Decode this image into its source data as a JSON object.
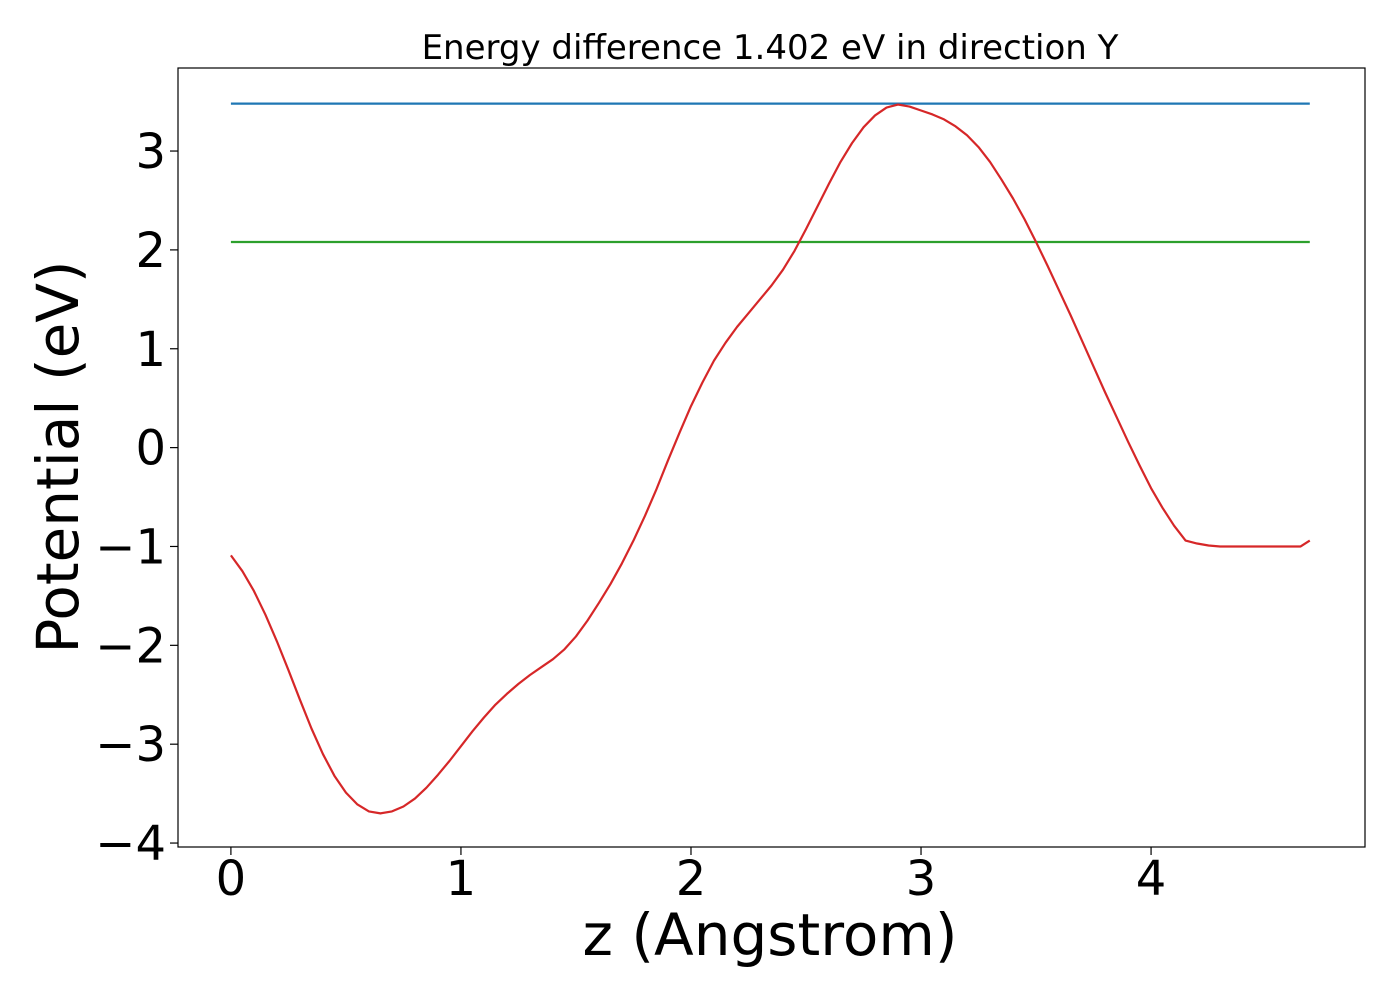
{
  "chart_data": {
    "type": "line",
    "title": "Energy difference 1.402 eV in direction Y",
    "xlabel": "z (Angstrom)",
    "ylabel": "Potential (eV)",
    "xlim": [
      -0.23,
      4.93
    ],
    "ylim": [
      -4.04,
      3.84
    ],
    "x_ticks": [
      {
        "value": 0,
        "label": "0"
      },
      {
        "value": 1,
        "label": "1"
      },
      {
        "value": 2,
        "label": "2"
      },
      {
        "value": 3,
        "label": "3"
      },
      {
        "value": 4,
        "label": "4"
      }
    ],
    "y_ticks": [
      {
        "value": -4,
        "label": "−4"
      },
      {
        "value": -3,
        "label": "−3"
      },
      {
        "value": -2,
        "label": "−2"
      },
      {
        "value": -1,
        "label": "−1"
      },
      {
        "value": 0,
        "label": "0"
      },
      {
        "value": 1,
        "label": "1"
      },
      {
        "value": 2,
        "label": "2"
      },
      {
        "value": 3,
        "label": "3"
      }
    ],
    "grid": false,
    "series": [
      {
        "color": "#d62728",
        "x": [
          0.0,
          0.05,
          0.1,
          0.15,
          0.2,
          0.25,
          0.3,
          0.35,
          0.4,
          0.45,
          0.5,
          0.55,
          0.6,
          0.65,
          0.7,
          0.75,
          0.8,
          0.85,
          0.9,
          0.95,
          1.0,
          1.05,
          1.1,
          1.15,
          1.2,
          1.25,
          1.3,
          1.35,
          1.4,
          1.45,
          1.5,
          1.55,
          1.6,
          1.65,
          1.7,
          1.75,
          1.8,
          1.85,
          1.9,
          1.95,
          2.0,
          2.05,
          2.1,
          2.15,
          2.2,
          2.25,
          2.3,
          2.35,
          2.4,
          2.45,
          2.5,
          2.55,
          2.6,
          2.65,
          2.7,
          2.75,
          2.8,
          2.85,
          2.9,
          2.95,
          3.0,
          3.05,
          3.1,
          3.15,
          3.2,
          3.25,
          3.3,
          3.35,
          3.4,
          3.45,
          3.5,
          3.55,
          3.6,
          3.65,
          3.7,
          3.75,
          3.8,
          3.85,
          3.9,
          3.95,
          4.0,
          4.05,
          4.1,
          4.15,
          4.2,
          4.25,
          4.3,
          4.35,
          4.4,
          4.45,
          4.5,
          4.55,
          4.6,
          4.65,
          4.69
        ],
        "y": [
          -1.09,
          -1.25,
          -1.45,
          -1.69,
          -1.96,
          -2.25,
          -2.55,
          -2.84,
          -3.1,
          -3.32,
          -3.49,
          -3.61,
          -3.68,
          -3.7,
          -3.68,
          -3.63,
          -3.55,
          -3.44,
          -3.31,
          -3.17,
          -3.02,
          -2.87,
          -2.73,
          -2.6,
          -2.49,
          -2.39,
          -2.3,
          -2.22,
          -2.14,
          -2.04,
          -1.91,
          -1.75,
          -1.57,
          -1.38,
          -1.17,
          -0.94,
          -0.69,
          -0.42,
          -0.13,
          0.15,
          0.42,
          0.66,
          0.88,
          1.06,
          1.22,
          1.36,
          1.5,
          1.64,
          1.8,
          1.99,
          2.21,
          2.44,
          2.67,
          2.89,
          3.08,
          3.24,
          3.36,
          3.44,
          3.47,
          3.45,
          3.41,
          3.37,
          3.32,
          3.25,
          3.16,
          3.04,
          2.89,
          2.71,
          2.52,
          2.31,
          2.08,
          1.84,
          1.59,
          1.34,
          1.08,
          0.82,
          0.56,
          0.31,
          0.06,
          -0.18,
          -0.41,
          -0.61,
          -0.79,
          -0.94,
          -0.97,
          -0.99,
          -1.0,
          -1.0,
          -1.0,
          -1.0,
          -1.0,
          -1.0,
          -1.0,
          -1.0,
          -0.94
        ]
      },
      {
        "color": "#1f77b4",
        "x": [
          0.0,
          4.69
        ],
        "y": [
          3.48,
          3.48
        ]
      },
      {
        "color": "#2ca02c",
        "x": [
          0.0,
          4.69
        ],
        "y": [
          2.08,
          2.08
        ]
      }
    ]
  }
}
